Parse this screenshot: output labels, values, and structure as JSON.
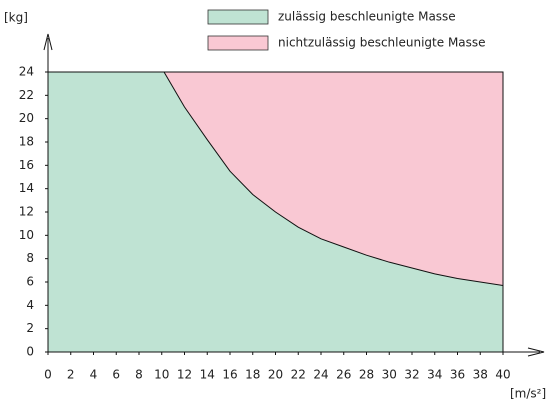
{
  "chart_data": {
    "type": "area",
    "y_label": "[kg]",
    "x_label": "[m/s²]",
    "x": [
      0,
      10.2,
      12,
      14,
      16,
      18,
      20,
      22,
      24,
      26,
      28,
      30,
      32,
      34,
      36,
      38,
      40
    ],
    "series": [
      {
        "name": "zulässig beschleunigte Masse",
        "color": "#bfe3d3",
        "values": [
          24,
          24,
          21,
          18.2,
          15.5,
          13.5,
          12,
          10.7,
          9.7,
          9,
          8.3,
          7.7,
          7.2,
          6.7,
          6.3,
          6,
          5.7
        ]
      },
      {
        "name": "nichtzulässig beschleunigte Masse",
        "color": "#f9c8d3",
        "values": [
          24,
          24,
          24,
          24,
          24,
          24,
          24,
          24,
          24,
          24,
          24,
          24,
          24,
          24,
          24,
          24,
          24
        ]
      }
    ],
    "xlim": [
      0,
      40
    ],
    "ylim": [
      0,
      24
    ],
    "xticks": [
      0,
      2,
      4,
      6,
      8,
      10,
      12,
      14,
      16,
      18,
      20,
      22,
      24,
      26,
      28,
      30,
      32,
      34,
      36,
      38,
      40
    ],
    "yticks": [
      0,
      2,
      4,
      6,
      8,
      10,
      12,
      14,
      16,
      18,
      20,
      22,
      24
    ]
  }
}
